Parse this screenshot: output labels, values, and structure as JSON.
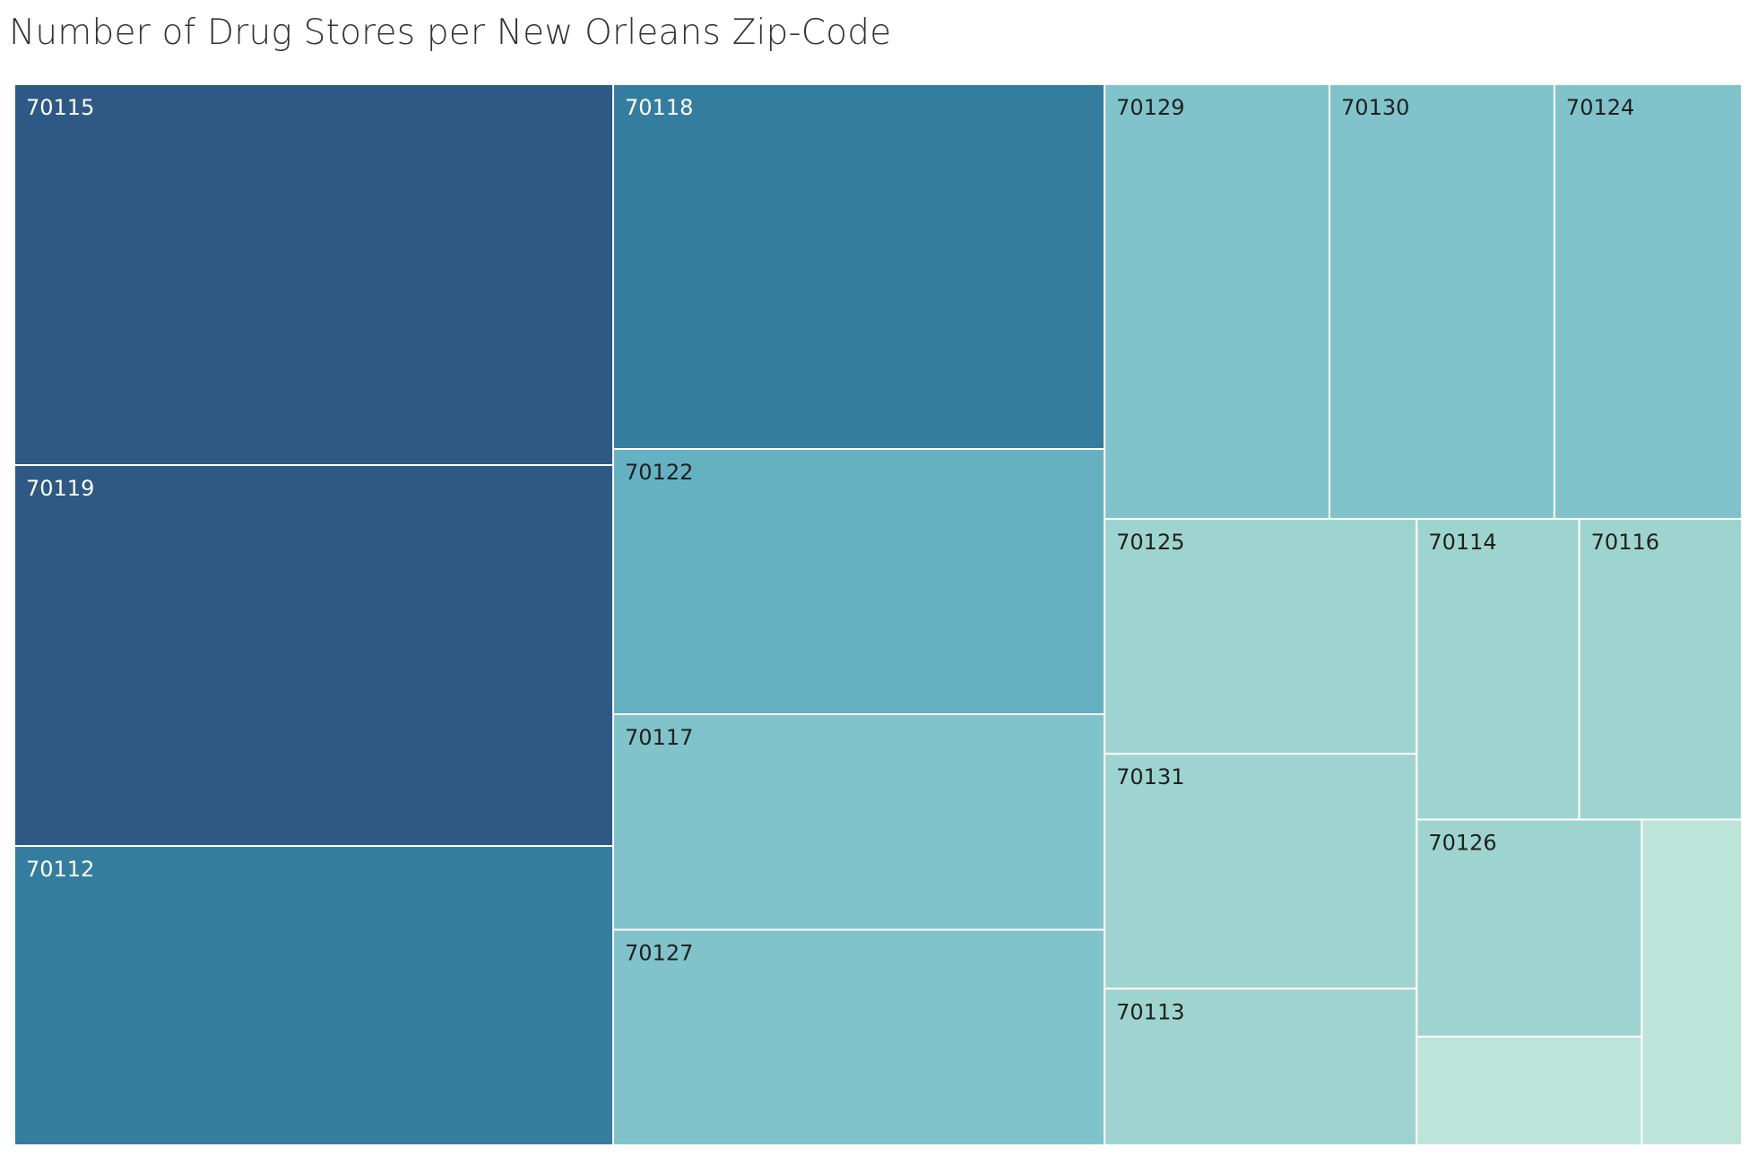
{
  "title": "Number of Drug Stores per New Orleans Zip-Code",
  "chart_data": {
    "type": "treemap",
    "title": "Number of Drug Stores per New Orleans Zip-Code",
    "colors": [
      "#bde4d9",
      "#9ed4d0",
      "#81c3ca",
      "#65b1c1",
      "#47a1b7",
      "#357d9f",
      "#2d5984"
    ],
    "items": [
      {
        "label": "70115",
        "value": 14
      },
      {
        "label": "70119",
        "value": 14
      },
      {
        "label": "70112",
        "value": 11
      },
      {
        "label": "70118",
        "value": 11
      },
      {
        "label": "70122",
        "value": 8
      },
      {
        "label": "70117",
        "value": 6.5
      },
      {
        "label": "70127",
        "value": 6.5
      },
      {
        "label": "70129",
        "value": 6
      },
      {
        "label": "70130",
        "value": 6
      },
      {
        "label": "70124",
        "value": 5
      },
      {
        "label": "70125",
        "value": 4.5
      },
      {
        "label": "70131",
        "value": 4.5
      },
      {
        "label": "70113",
        "value": 3
      },
      {
        "label": "70114",
        "value": 3
      },
      {
        "label": "70116",
        "value": 3
      },
      {
        "label": "70126",
        "value": 3
      },
      {
        "label": "",
        "value": 1.5
      },
      {
        "label": "",
        "value": 2
      }
    ]
  }
}
